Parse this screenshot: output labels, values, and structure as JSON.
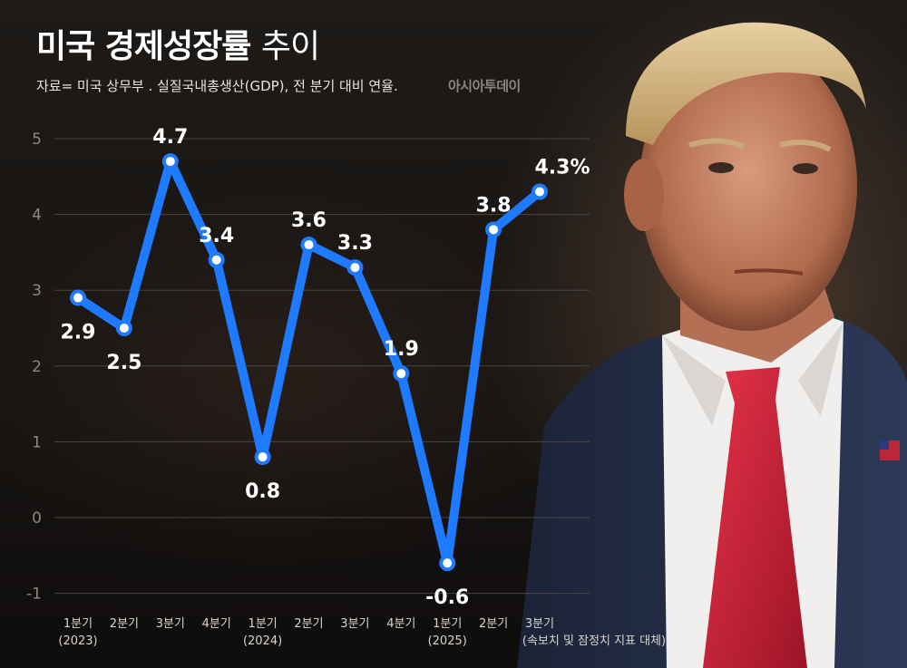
{
  "header": {
    "title_bold": "미국 경제성장률",
    "title_light": "추이",
    "source": "자료= 미국 상무부 . 실질국내총생산(GDP), 전 분기 대비 연율.",
    "brand": "아시아투데이"
  },
  "colors": {
    "line": "#1e7bff",
    "marker_fill": "#ffffff",
    "grid": "#4a4542"
  },
  "chart_data": {
    "type": "line",
    "title": "미국 경제성장률 추이",
    "xlabel": "",
    "ylabel": "",
    "ylim": [
      -1,
      5
    ],
    "yticks": [
      5,
      4,
      3,
      2,
      1,
      0,
      -1
    ],
    "ytick_labels": [
      "5",
      "4",
      "3",
      "2",
      "1",
      "0",
      "-1"
    ],
    "grid": "horizontal",
    "categories": [
      {
        "quarter": "1분기",
        "sub": "(2023)"
      },
      {
        "quarter": "2분기",
        "sub": ""
      },
      {
        "quarter": "3분기",
        "sub": ""
      },
      {
        "quarter": "4분기",
        "sub": ""
      },
      {
        "quarter": "1분기",
        "sub": "(2024)"
      },
      {
        "quarter": "2분기",
        "sub": ""
      },
      {
        "quarter": "3분기",
        "sub": ""
      },
      {
        "quarter": "4분기",
        "sub": ""
      },
      {
        "quarter": "1분기",
        "sub": "(2025)"
      },
      {
        "quarter": "2분기",
        "sub": ""
      },
      {
        "quarter": "3분기",
        "sub": "(속보치 및 잠정치 지표 대체)"
      }
    ],
    "series": [
      {
        "values": [
          2.9,
          2.5,
          4.7,
          3.4,
          0.8,
          3.6,
          3.3,
          1.9,
          -0.6,
          3.8,
          4.3
        ],
        "labels": [
          "2.9",
          "2.5",
          "4.7",
          "3.4",
          "0.8",
          "3.6",
          "3.3",
          "1.9",
          "-0.6",
          "3.8",
          "4.3"
        ],
        "label_suffix_last": "%"
      }
    ]
  }
}
